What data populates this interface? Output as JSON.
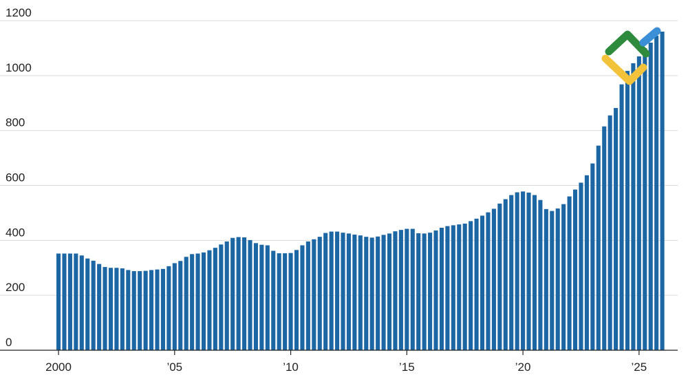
{
  "chart_data": {
    "type": "bar",
    "title": "",
    "xlabel": "",
    "ylabel": "",
    "ylim": [
      0,
      1200
    ],
    "yticks": [
      "0",
      "200",
      "400",
      "600",
      "800",
      "1000",
      "1200"
    ],
    "xticks": [
      "2000",
      "’05",
      "’10",
      "’15",
      "’20",
      "’25"
    ],
    "grid": true,
    "legend": "none",
    "colors": {
      "bar": "#1c66a4",
      "grid": "#d9d9d9",
      "axis": "#222222"
    },
    "logo": {
      "name": "chart-logo",
      "colors": [
        "#2e8b3e",
        "#f2c23a",
        "#3a8fd6"
      ]
    },
    "series": [
      {
        "values": [
          352,
          352,
          352,
          352,
          345,
          334,
          326,
          314,
          303,
          300,
          300,
          298,
          292,
          288,
          288,
          289,
          292,
          294,
          296,
          306,
          317,
          325,
          340,
          350,
          352,
          356,
          364,
          373,
          385,
          396,
          409,
          412,
          411,
          401,
          390,
          384,
          382,
          362,
          353,
          353,
          354,
          365,
          382,
          396,
          404,
          413,
          427,
          432,
          432,
          428,
          425,
          421,
          418,
          413,
          410,
          414,
          420,
          425,
          433,
          438,
          442,
          442,
          426,
          425,
          428,
          436,
          446,
          452,
          455,
          458,
          461,
          470,
          479,
          490,
          502,
          515,
          534,
          550,
          565,
          575,
          578,
          574,
          565,
          547,
          514,
          507,
          516,
          532,
          560,
          585,
          610,
          637,
          680,
          745,
          815,
          855,
          882,
          968,
          1017,
          1045,
          1070,
          1100,
          1120,
          1145,
          1160
        ]
      }
    ]
  }
}
